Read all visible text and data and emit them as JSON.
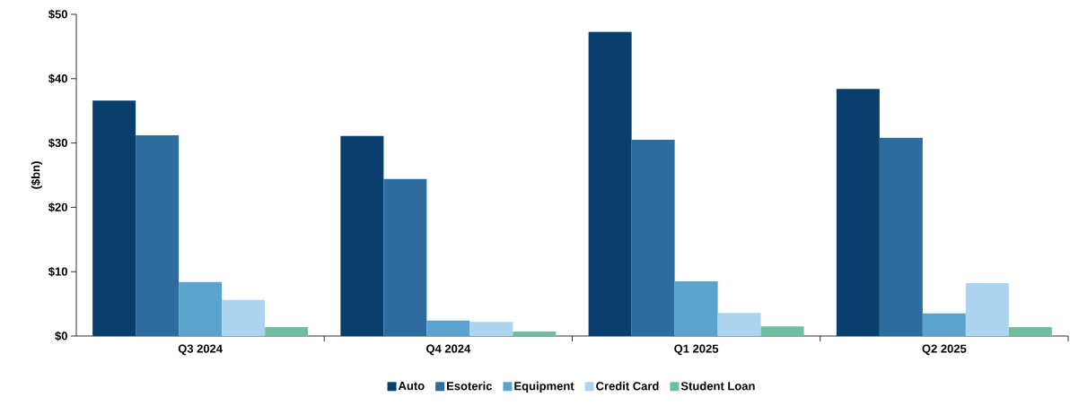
{
  "chart_data": {
    "type": "bar",
    "ylabel": "($bn)",
    "categories": [
      "Q3 2024",
      "Q4 2024",
      "Q1 2025",
      "Q2 2025"
    ],
    "series": [
      {
        "name": "Auto",
        "color": "#0b3f6b",
        "values": [
          36.6,
          31.1,
          47.3,
          38.4
        ]
      },
      {
        "name": "Esoteric",
        "color": "#2e6b9e",
        "values": [
          31.2,
          24.4,
          30.5,
          30.8
        ]
      },
      {
        "name": "Equipment",
        "color": "#5ba3cc",
        "values": [
          8.4,
          2.4,
          8.5,
          3.5
        ]
      },
      {
        "name": "Credit Card",
        "color": "#acd4ef",
        "values": [
          5.6,
          2.2,
          3.6,
          8.2
        ]
      },
      {
        "name": "Student Loan",
        "color": "#6fbf9e",
        "values": [
          1.4,
          0.7,
          1.5,
          1.4
        ]
      }
    ],
    "ylim": [
      0,
      50
    ],
    "yticks": [
      {
        "value": 0,
        "label": "$0"
      },
      {
        "value": 10,
        "label": "$10"
      },
      {
        "value": 20,
        "label": "$20"
      },
      {
        "value": 30,
        "label": "$30"
      },
      {
        "value": 40,
        "label": "$40"
      },
      {
        "value": 50,
        "label": "$50"
      }
    ],
    "grid": false,
    "legend": "bottom"
  }
}
